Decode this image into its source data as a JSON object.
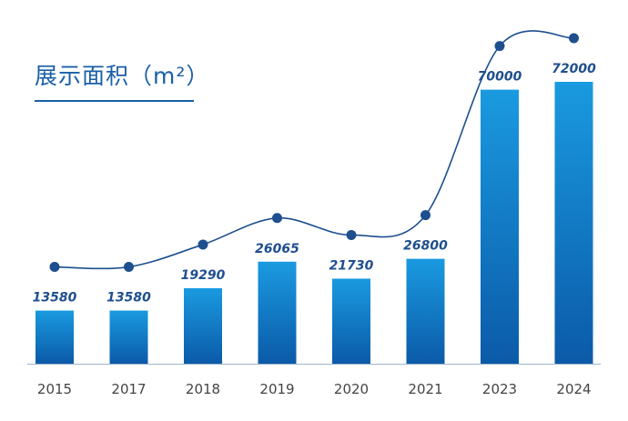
{
  "title": "展示面积（m²）",
  "colors": {
    "bar_top": "#1a9ae0",
    "bar_bottom": "#0b5aa8",
    "line": "#1d4f8f",
    "marker": "#1d4f8f",
    "title": "#1a5fa8",
    "baseline": "#9fb5cf"
  },
  "chart_data": {
    "type": "bar",
    "title": "展示面积（m²）",
    "xlabel": "",
    "ylabel": "",
    "categories": [
      "2015",
      "2017",
      "2018",
      "2019",
      "2020",
      "2021",
      "2023",
      "2024"
    ],
    "values": [
      13580,
      13580,
      19290,
      26065,
      21730,
      26800,
      70000,
      72000
    ],
    "overlay": "smooth line with circular markers above bars following the values",
    "data_labels": true,
    "grid": false,
    "legend": "none"
  }
}
